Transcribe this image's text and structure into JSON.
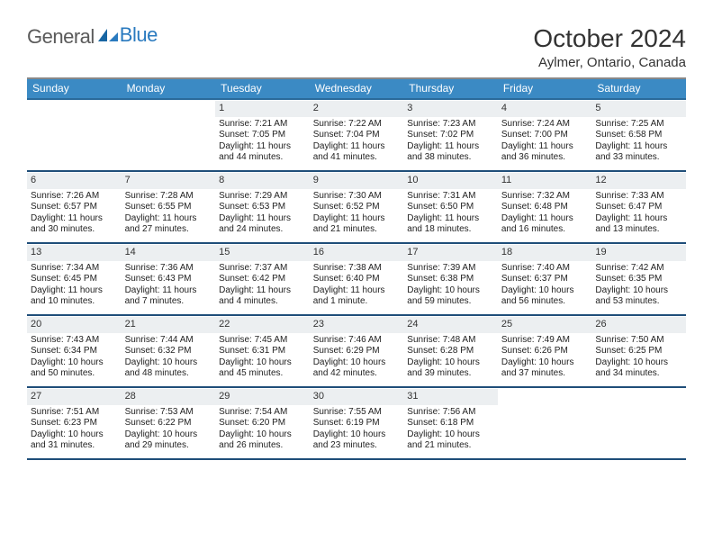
{
  "brand": {
    "word1": "General",
    "word2": "Blue"
  },
  "title": "October 2024",
  "location": "Aylmer, Ontario, Canada",
  "colors": {
    "header_bg": "#3b8ac4",
    "header_text": "#ffffff",
    "week_divider": "#1f4e79",
    "daynum_bg": "#eceff1",
    "text": "#222222",
    "brand_blue": "#2a7abf"
  },
  "dow": [
    "Sunday",
    "Monday",
    "Tuesday",
    "Wednesday",
    "Thursday",
    "Friday",
    "Saturday"
  ],
  "weeks": [
    [
      {
        "blank": true
      },
      {
        "blank": true
      },
      {
        "n": "1",
        "sunrise": "Sunrise: 7:21 AM",
        "sunset": "Sunset: 7:05 PM",
        "daylight": "Daylight: 11 hours and 44 minutes."
      },
      {
        "n": "2",
        "sunrise": "Sunrise: 7:22 AM",
        "sunset": "Sunset: 7:04 PM",
        "daylight": "Daylight: 11 hours and 41 minutes."
      },
      {
        "n": "3",
        "sunrise": "Sunrise: 7:23 AM",
        "sunset": "Sunset: 7:02 PM",
        "daylight": "Daylight: 11 hours and 38 minutes."
      },
      {
        "n": "4",
        "sunrise": "Sunrise: 7:24 AM",
        "sunset": "Sunset: 7:00 PM",
        "daylight": "Daylight: 11 hours and 36 minutes."
      },
      {
        "n": "5",
        "sunrise": "Sunrise: 7:25 AM",
        "sunset": "Sunset: 6:58 PM",
        "daylight": "Daylight: 11 hours and 33 minutes."
      }
    ],
    [
      {
        "n": "6",
        "sunrise": "Sunrise: 7:26 AM",
        "sunset": "Sunset: 6:57 PM",
        "daylight": "Daylight: 11 hours and 30 minutes."
      },
      {
        "n": "7",
        "sunrise": "Sunrise: 7:28 AM",
        "sunset": "Sunset: 6:55 PM",
        "daylight": "Daylight: 11 hours and 27 minutes."
      },
      {
        "n": "8",
        "sunrise": "Sunrise: 7:29 AM",
        "sunset": "Sunset: 6:53 PM",
        "daylight": "Daylight: 11 hours and 24 minutes."
      },
      {
        "n": "9",
        "sunrise": "Sunrise: 7:30 AM",
        "sunset": "Sunset: 6:52 PM",
        "daylight": "Daylight: 11 hours and 21 minutes."
      },
      {
        "n": "10",
        "sunrise": "Sunrise: 7:31 AM",
        "sunset": "Sunset: 6:50 PM",
        "daylight": "Daylight: 11 hours and 18 minutes."
      },
      {
        "n": "11",
        "sunrise": "Sunrise: 7:32 AM",
        "sunset": "Sunset: 6:48 PM",
        "daylight": "Daylight: 11 hours and 16 minutes."
      },
      {
        "n": "12",
        "sunrise": "Sunrise: 7:33 AM",
        "sunset": "Sunset: 6:47 PM",
        "daylight": "Daylight: 11 hours and 13 minutes."
      }
    ],
    [
      {
        "n": "13",
        "sunrise": "Sunrise: 7:34 AM",
        "sunset": "Sunset: 6:45 PM",
        "daylight": "Daylight: 11 hours and 10 minutes."
      },
      {
        "n": "14",
        "sunrise": "Sunrise: 7:36 AM",
        "sunset": "Sunset: 6:43 PM",
        "daylight": "Daylight: 11 hours and 7 minutes."
      },
      {
        "n": "15",
        "sunrise": "Sunrise: 7:37 AM",
        "sunset": "Sunset: 6:42 PM",
        "daylight": "Daylight: 11 hours and 4 minutes."
      },
      {
        "n": "16",
        "sunrise": "Sunrise: 7:38 AM",
        "sunset": "Sunset: 6:40 PM",
        "daylight": "Daylight: 11 hours and 1 minute."
      },
      {
        "n": "17",
        "sunrise": "Sunrise: 7:39 AM",
        "sunset": "Sunset: 6:38 PM",
        "daylight": "Daylight: 10 hours and 59 minutes."
      },
      {
        "n": "18",
        "sunrise": "Sunrise: 7:40 AM",
        "sunset": "Sunset: 6:37 PM",
        "daylight": "Daylight: 10 hours and 56 minutes."
      },
      {
        "n": "19",
        "sunrise": "Sunrise: 7:42 AM",
        "sunset": "Sunset: 6:35 PM",
        "daylight": "Daylight: 10 hours and 53 minutes."
      }
    ],
    [
      {
        "n": "20",
        "sunrise": "Sunrise: 7:43 AM",
        "sunset": "Sunset: 6:34 PM",
        "daylight": "Daylight: 10 hours and 50 minutes."
      },
      {
        "n": "21",
        "sunrise": "Sunrise: 7:44 AM",
        "sunset": "Sunset: 6:32 PM",
        "daylight": "Daylight: 10 hours and 48 minutes."
      },
      {
        "n": "22",
        "sunrise": "Sunrise: 7:45 AM",
        "sunset": "Sunset: 6:31 PM",
        "daylight": "Daylight: 10 hours and 45 minutes."
      },
      {
        "n": "23",
        "sunrise": "Sunrise: 7:46 AM",
        "sunset": "Sunset: 6:29 PM",
        "daylight": "Daylight: 10 hours and 42 minutes."
      },
      {
        "n": "24",
        "sunrise": "Sunrise: 7:48 AM",
        "sunset": "Sunset: 6:28 PM",
        "daylight": "Daylight: 10 hours and 39 minutes."
      },
      {
        "n": "25",
        "sunrise": "Sunrise: 7:49 AM",
        "sunset": "Sunset: 6:26 PM",
        "daylight": "Daylight: 10 hours and 37 minutes."
      },
      {
        "n": "26",
        "sunrise": "Sunrise: 7:50 AM",
        "sunset": "Sunset: 6:25 PM",
        "daylight": "Daylight: 10 hours and 34 minutes."
      }
    ],
    [
      {
        "n": "27",
        "sunrise": "Sunrise: 7:51 AM",
        "sunset": "Sunset: 6:23 PM",
        "daylight": "Daylight: 10 hours and 31 minutes."
      },
      {
        "n": "28",
        "sunrise": "Sunrise: 7:53 AM",
        "sunset": "Sunset: 6:22 PM",
        "daylight": "Daylight: 10 hours and 29 minutes."
      },
      {
        "n": "29",
        "sunrise": "Sunrise: 7:54 AM",
        "sunset": "Sunset: 6:20 PM",
        "daylight": "Daylight: 10 hours and 26 minutes."
      },
      {
        "n": "30",
        "sunrise": "Sunrise: 7:55 AM",
        "sunset": "Sunset: 6:19 PM",
        "daylight": "Daylight: 10 hours and 23 minutes."
      },
      {
        "n": "31",
        "sunrise": "Sunrise: 7:56 AM",
        "sunset": "Sunset: 6:18 PM",
        "daylight": "Daylight: 10 hours and 21 minutes."
      },
      {
        "blank": true
      },
      {
        "blank": true
      }
    ]
  ]
}
